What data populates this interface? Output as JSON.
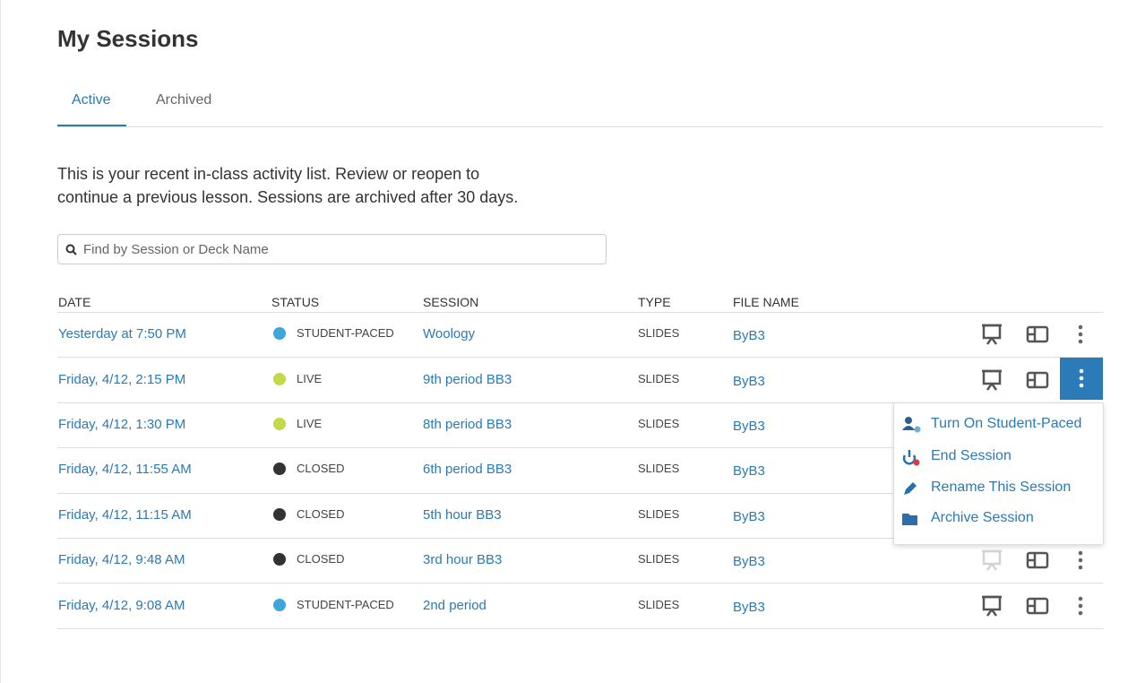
{
  "header": {
    "title": "My Sessions"
  },
  "tabs": [
    "Active",
    "Archived"
  ],
  "description": [
    "This is your recent in-class activity list. Review or reopen to",
    "continue a previous lesson. Sessions are archived after 30 days."
  ],
  "search": {
    "placeholder": "Find by Session or Deck Name"
  },
  "table": {
    "columns": [
      "DATE",
      "STATUS",
      "SESSION",
      "TYPE",
      "FILE NAME"
    ],
    "rows": [
      [
        "Yesterday at 7:50 PM",
        "STUDENT-PACED",
        "Woology",
        "SLIDES",
        "ByB3"
      ],
      [
        "Friday, 4/12, 2:15 PM",
        "LIVE",
        "9th period BB3",
        "SLIDES",
        "ByB3"
      ],
      [
        "Friday, 4/12, 1:30 PM",
        "LIVE",
        "8th period BB3",
        "SLIDES",
        "ByB3"
      ],
      [
        "Friday, 4/12, 11:55 AM",
        "CLOSED",
        "6th period BB3",
        "SLIDES",
        "ByB3"
      ],
      [
        "Friday, 4/12, 11:15 AM",
        "CLOSED",
        "5th hour BB3",
        "SLIDES",
        "ByB3"
      ],
      [
        "Friday, 4/12, 9:48 AM",
        "CLOSED",
        "3rd hour BB3",
        "SLIDES",
        "ByB3"
      ],
      [
        "Friday, 4/12, 9:08 AM",
        "STUDENT-PACED",
        "2nd period",
        "SLIDES",
        "ByB3"
      ]
    ]
  },
  "menu": {
    "items": [
      "Turn On Student-Paced",
      "End Session",
      "Rename This Session",
      "Archive Session"
    ]
  }
}
